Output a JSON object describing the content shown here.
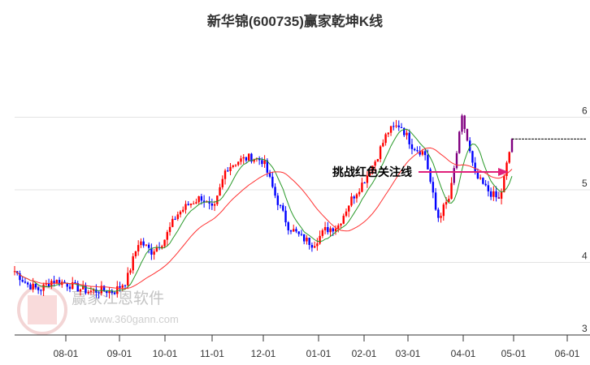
{
  "title": "新华锦(600735)赢家乾坤K线",
  "watermark": {
    "brand": "赢家江恩软件",
    "url": "www.360gann.com",
    "seal": "江赢恩家"
  },
  "annotation": "挑战红色关注线",
  "colors": {
    "up": "#ff0000",
    "down": "#0000ff",
    "purple": "#800080",
    "ma_short": "#2a9a2a",
    "ma_long": "#ff3030",
    "arrow": "#e0207a"
  },
  "chart_data": {
    "type": "candlestick",
    "title": "新华锦(600735)赢家乾坤K线",
    "y_ticks": [
      3,
      4,
      5,
      6
    ],
    "ylim": [
      3,
      6.75
    ],
    "x_ticks": [
      "08-01",
      "09-01",
      "10-01",
      "11-01",
      "12-01",
      "01-01",
      "02-01",
      "03-01",
      "04-01",
      "05-01",
      "06-01"
    ],
    "close_keypoints": [
      3.88,
      3.7,
      3.62,
      3.75,
      3.72,
      3.65,
      3.6,
      3.62,
      3.6,
      3.75,
      4.3,
      4.15,
      4.3,
      4.65,
      4.8,
      4.9,
      4.7,
      5.3,
      5.4,
      5.45,
      5.4,
      4.9,
      4.5,
      4.35,
      4.25,
      4.45,
      4.5,
      4.85,
      5.1,
      5.4,
      5.8,
      5.9,
      5.6,
      5.5,
      4.6,
      4.9,
      6.0,
      5.2,
      5.0,
      4.85,
      5.7
    ],
    "last_price_line": 5.7
  }
}
